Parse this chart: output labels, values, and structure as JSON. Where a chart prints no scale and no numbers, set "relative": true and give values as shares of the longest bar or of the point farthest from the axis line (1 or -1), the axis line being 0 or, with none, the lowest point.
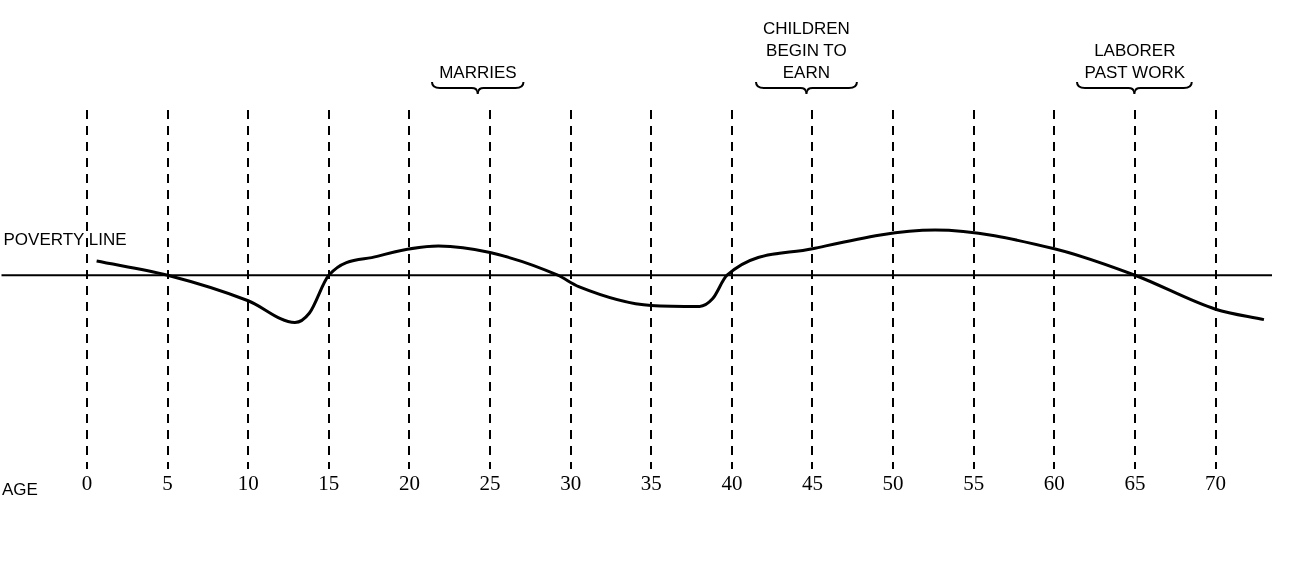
{
  "chart_data": {
    "type": "line",
    "relative": true,
    "xlabel": "AGE",
    "x": [
      0.6,
      5,
      10,
      12.9,
      13.8,
      15,
      18,
      21.8,
      25,
      29.2,
      30.5,
      35,
      38,
      38.8,
      39.7,
      45,
      52.6,
      60,
      65,
      70,
      73
    ],
    "series": [
      {
        "color": "#000000",
        "values": [
          0.3,
          0,
          -0.54,
          -1,
          -0.8,
          0,
          0.4,
          0.62,
          0.48,
          0,
          -0.24,
          -0.64,
          -0.66,
          -0.5,
          0,
          0.56,
          0.96,
          0.56,
          0,
          -0.72,
          -0.94
        ]
      }
    ],
    "xlim": [
      -5.3,
      73.5
    ],
    "xticks": [
      0,
      5,
      10,
      15,
      20,
      25,
      30,
      35,
      40,
      45,
      50,
      55,
      60,
      65,
      70
    ],
    "grid": "x",
    "legend": false,
    "ref_lines": [
      {
        "axis": "y",
        "value": 0,
        "label": "POVERTY LINE"
      }
    ],
    "annotations": [
      "MARRIES",
      "CHILDREN BEGIN TO EARN",
      "LABORER PAST WORK"
    ]
  }
}
